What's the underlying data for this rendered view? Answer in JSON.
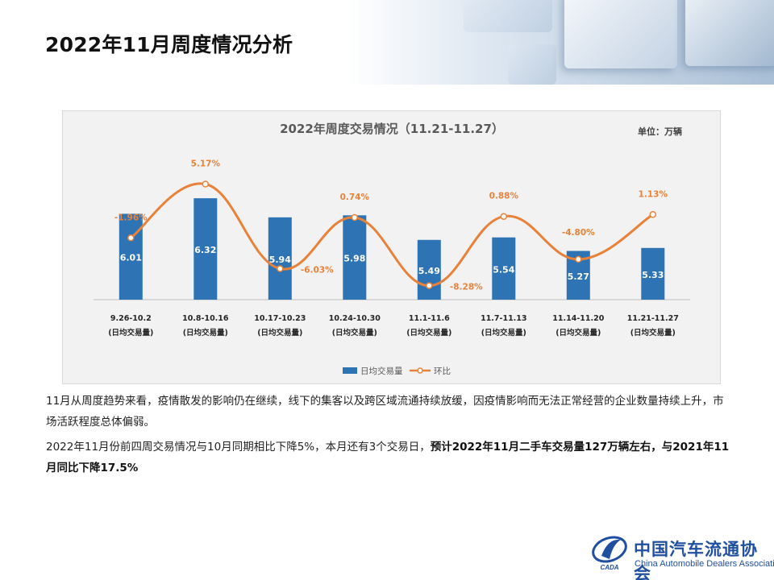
{
  "page": {
    "title": "2022年11月周度情况分析"
  },
  "chart_data": {
    "type": "bar",
    "title": "2022年周度交易情况（11.21-11.27）",
    "unit_label": "单位：万辆",
    "categories": [
      "9.26-10.2",
      "10.8-10.16",
      "10.17-10.23",
      "10.24-10.30",
      "11.1-11.6",
      "11.7-11.13",
      "11.14-11.20",
      "11.21-11.27"
    ],
    "category_sub": "(日均交易量)",
    "series": [
      {
        "name": "日均交易量",
        "type": "bar",
        "color": "#2e74b5",
        "values": [
          6.01,
          6.32,
          5.94,
          5.98,
          5.49,
          5.54,
          5.27,
          5.33
        ],
        "labels": [
          "6.01",
          "6.32",
          "5.94",
          "5.98",
          "5.49",
          "5.54",
          "5.27",
          "5.33"
        ]
      },
      {
        "name": "环比",
        "type": "line",
        "color": "#e8823a",
        "values": [
          -1.96,
          5.17,
          -6.03,
          0.74,
          -8.28,
          0.88,
          -4.8,
          1.13
        ],
        "labels": [
          "-1.96%",
          "5.17%",
          "-6.03%",
          "0.74%",
          "-8.28%",
          "0.88%",
          "-4.80%",
          "1.13%"
        ]
      }
    ],
    "legend_position": "bottom",
    "grid": false
  },
  "text": {
    "para1": "11月从周度趋势来看，疫情散发的影响仍在继续，线下的集客以及跨区域流通持续放缓，因疫情影响而无法正常经营的企业数量持续上升，市场活跃程度总体偏弱。",
    "para2_normal": "2022年11月份前四周交易情况与10月同期相比下降5%，本月还有3个交易日，",
    "para2_bold": "预计2022年11月二手车交易量127万辆左右，与2021年11月同比下降17.5%"
  },
  "logo": {
    "cn": "中国汽车流通协会",
    "en": "China Automobile Dealers Association",
    "emblem_text": "CADA"
  }
}
